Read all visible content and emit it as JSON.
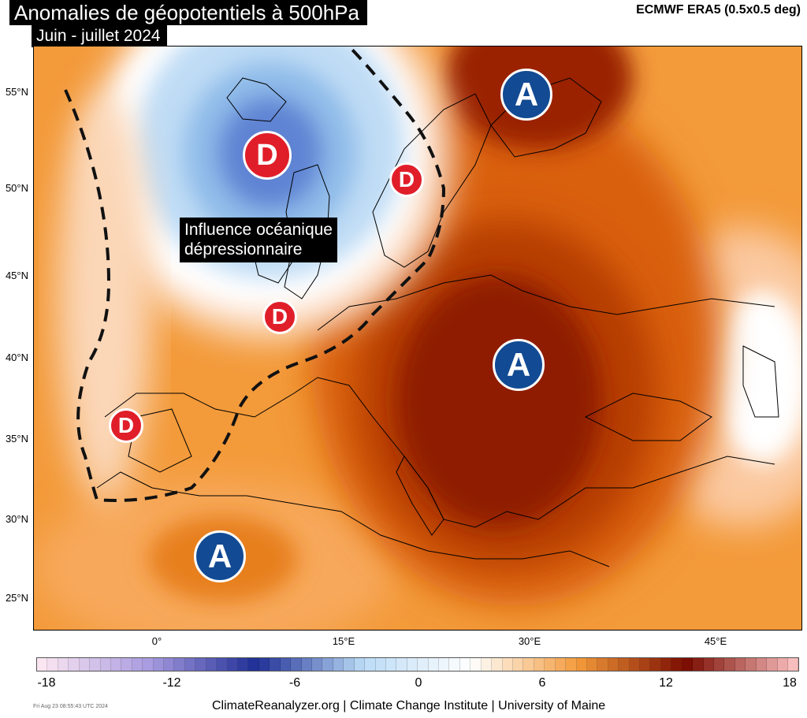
{
  "header": {
    "title": "Anomalies de géopotentiels à 500hPa",
    "subtitle": "Juin - juillet 2024",
    "source": "ECMWF ERA5 (0.5x0.5 deg)"
  },
  "map": {
    "lat_labels": [
      "55°N",
      "50°N",
      "45°N",
      "40°N",
      "35°N",
      "30°N",
      "25°N"
    ],
    "lon_labels": [
      "0°",
      "15°E",
      "30°E",
      "45°E"
    ],
    "annotation_line1": "Influence océanique",
    "annotation_line2": "dépressionnaire",
    "pressure_centers": [
      {
        "type": "low",
        "label": "D",
        "region": "North Atlantic / Iceland"
      },
      {
        "type": "low",
        "label": "D",
        "region": "Scandinavia"
      },
      {
        "type": "low",
        "label": "D",
        "region": "Northern France / Benelux"
      },
      {
        "type": "low",
        "label": "D",
        "region": "Iberian Peninsula"
      },
      {
        "type": "high",
        "label": "A",
        "region": "Northwest Russia"
      },
      {
        "type": "high",
        "label": "A",
        "region": "Eastern Europe"
      },
      {
        "type": "high",
        "label": "A",
        "region": "North Africa"
      }
    ]
  },
  "colorbar": {
    "ticks": [
      "-18",
      "-12",
      "-6",
      "0",
      "6",
      "12",
      "18"
    ],
    "colors": {
      "min": "#fbe6f2",
      "purple": "#a89be0",
      "blue_dark": "#1f2f96",
      "blue_light": "#bcdcf6",
      "neutral": "#ffffff",
      "orange": "#f39a3a",
      "red_dark": "#7a0b00",
      "max": "#f8bdbd"
    }
  },
  "footer": {
    "timestamp": "Fri Aug 23 08:55:43 UTC 2024",
    "credit": "ClimateReanalyzer.org | Climate Change Institute | University of Maine"
  }
}
